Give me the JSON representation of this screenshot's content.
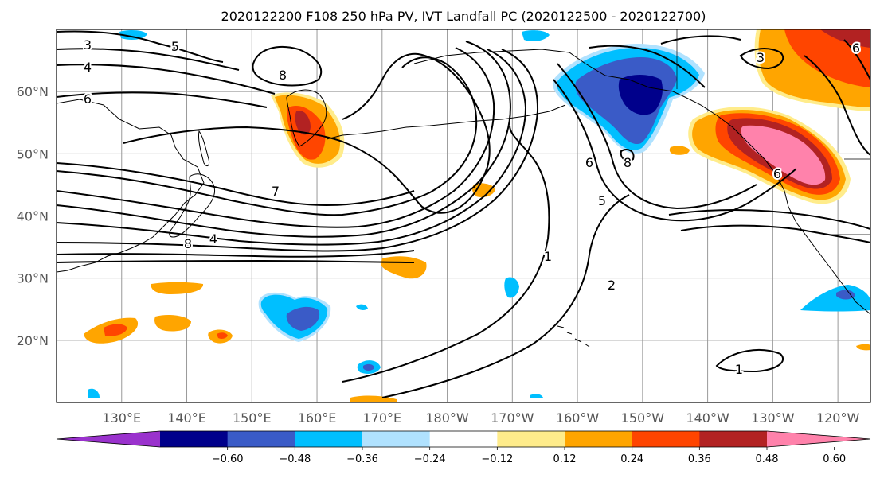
{
  "title": "2020122200 F108 250 hPa PV, IVT Landfall PC (2020122500 - 2020122700)",
  "map": {
    "lon_range": [
      120,
      -115
    ],
    "lat_range": [
      10,
      70
    ],
    "lat_labels": [
      "20°N",
      "30°N",
      "40°N",
      "50°N",
      "60°N"
    ],
    "lon_labels": [
      "130°E",
      "140°E",
      "150°E",
      "160°E",
      "170°E",
      "180°W",
      "170°W",
      "160°W",
      "150°W",
      "140°W",
      "130°W",
      "120°W"
    ],
    "grid": true
  },
  "pv_contour_labels": [
    "3",
    "4",
    "5",
    "6",
    "8",
    "7",
    "4",
    "8",
    "1",
    "2",
    "5",
    "6",
    "8",
    "3",
    "6",
    "6",
    "1"
  ],
  "colorbar": {
    "ticks": [
      "−0.60",
      "−0.48",
      "−0.36",
      "−0.24",
      "−0.12",
      "0.12",
      "0.24",
      "0.36",
      "0.48",
      "0.60"
    ],
    "colors": [
      "#9a32cd",
      "#00008b",
      "#3a5bc7",
      "#00bfff",
      "#b0e2ff",
      "#ffffff",
      "#ffec8b",
      "#ffa500",
      "#ff4500",
      "#b22222",
      "#ff82ab"
    ]
  }
}
